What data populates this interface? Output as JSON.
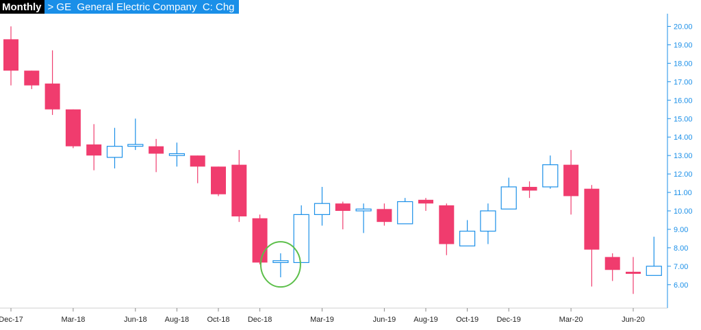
{
  "header": {
    "period": "Monthly",
    "symbol_line": "> GE  General Electric Company  C: Chg"
  },
  "colors": {
    "up": "#1a8fe8",
    "down": "#f03c6e",
    "axis": "#1a8fe8",
    "highlight": "#5cbf4a"
  },
  "chart_data": {
    "type": "candlestick",
    "title": "",
    "xlabel": "",
    "ylabel": "",
    "ylim": [
      5.4,
      20.4
    ],
    "y_ticks": [
      "20.00",
      "19.00",
      "18.00",
      "17.00",
      "16.00",
      "15.00",
      "14.00",
      "13.00",
      "12.00",
      "11.00",
      "10.00",
      "9.00",
      "8.00",
      "7.00",
      "6.00"
    ],
    "x_tick_labels": [
      {
        "label": "Dec-17",
        "index": 0
      },
      {
        "label": "Mar-18",
        "index": 3
      },
      {
        "label": "Jun-18",
        "index": 6
      },
      {
        "label": "Aug-18",
        "index": 8
      },
      {
        "label": "Oct-18",
        "index": 10
      },
      {
        "label": "Dec-18",
        "index": 12
      },
      {
        "label": "Mar-19",
        "index": 15
      },
      {
        "label": "Jun-19",
        "index": 18
      },
      {
        "label": "Aug-19",
        "index": 20
      },
      {
        "label": "Oct-19",
        "index": 22
      },
      {
        "label": "Dec-19",
        "index": 24
      },
      {
        "label": "Mar-20",
        "index": 27
      },
      {
        "label": "Jun-20",
        "index": 30
      }
    ],
    "candles": [
      {
        "o": 19.3,
        "h": 20.0,
        "l": 16.8,
        "c": 17.6
      },
      {
        "o": 17.6,
        "h": 17.6,
        "l": 16.6,
        "c": 16.8
      },
      {
        "o": 16.9,
        "h": 18.7,
        "l": 15.2,
        "c": 15.5
      },
      {
        "o": 15.5,
        "h": 15.5,
        "l": 13.4,
        "c": 13.5
      },
      {
        "o": 13.6,
        "h": 14.7,
        "l": 12.2,
        "c": 13.0
      },
      {
        "o": 12.9,
        "h": 14.5,
        "l": 12.3,
        "c": 13.5
      },
      {
        "o": 13.5,
        "h": 15.0,
        "l": 13.3,
        "c": 13.6
      },
      {
        "o": 13.5,
        "h": 13.9,
        "l": 12.1,
        "c": 13.1
      },
      {
        "o": 13.0,
        "h": 13.7,
        "l": 12.4,
        "c": 13.1
      },
      {
        "o": 13.0,
        "h": 13.0,
        "l": 11.5,
        "c": 12.4
      },
      {
        "o": 12.4,
        "h": 12.4,
        "l": 10.8,
        "c": 10.9
      },
      {
        "o": 12.5,
        "h": 13.3,
        "l": 9.4,
        "c": 9.7
      },
      {
        "o": 9.6,
        "h": 9.8,
        "l": 7.1,
        "c": 7.2
      },
      {
        "o": 7.2,
        "h": 7.7,
        "l": 6.4,
        "c": 7.3
      },
      {
        "o": 7.2,
        "h": 10.3,
        "l": 7.2,
        "c": 9.8
      },
      {
        "o": 9.8,
        "h": 11.3,
        "l": 9.2,
        "c": 10.4
      },
      {
        "o": 10.4,
        "h": 10.5,
        "l": 9.0,
        "c": 10.0
      },
      {
        "o": 10.0,
        "h": 10.4,
        "l": 8.8,
        "c": 10.1
      },
      {
        "o": 10.1,
        "h": 10.4,
        "l": 9.2,
        "c": 9.4
      },
      {
        "o": 9.3,
        "h": 10.7,
        "l": 9.3,
        "c": 10.5
      },
      {
        "o": 10.6,
        "h": 10.7,
        "l": 10.0,
        "c": 10.4
      },
      {
        "o": 10.3,
        "h": 10.4,
        "l": 7.6,
        "c": 8.2
      },
      {
        "o": 8.1,
        "h": 9.5,
        "l": 8.1,
        "c": 8.9
      },
      {
        "o": 8.9,
        "h": 10.4,
        "l": 8.2,
        "c": 10.0
      },
      {
        "o": 10.1,
        "h": 11.8,
        "l": 10.1,
        "c": 11.3
      },
      {
        "o": 11.3,
        "h": 11.6,
        "l": 10.7,
        "c": 11.1
      },
      {
        "o": 11.3,
        "h": 13.0,
        "l": 11.2,
        "c": 12.5
      },
      {
        "o": 12.5,
        "h": 13.3,
        "l": 9.8,
        "c": 10.8
      },
      {
        "o": 11.2,
        "h": 11.4,
        "l": 5.9,
        "c": 7.9
      },
      {
        "o": 7.5,
        "h": 7.7,
        "l": 6.2,
        "c": 6.8
      },
      {
        "o": 6.7,
        "h": 7.5,
        "l": 5.5,
        "c": 6.6
      },
      {
        "o": 6.5,
        "h": 8.6,
        "l": 6.5,
        "c": 7.0
      }
    ],
    "highlight": {
      "index": 13,
      "price": 7.1
    }
  }
}
